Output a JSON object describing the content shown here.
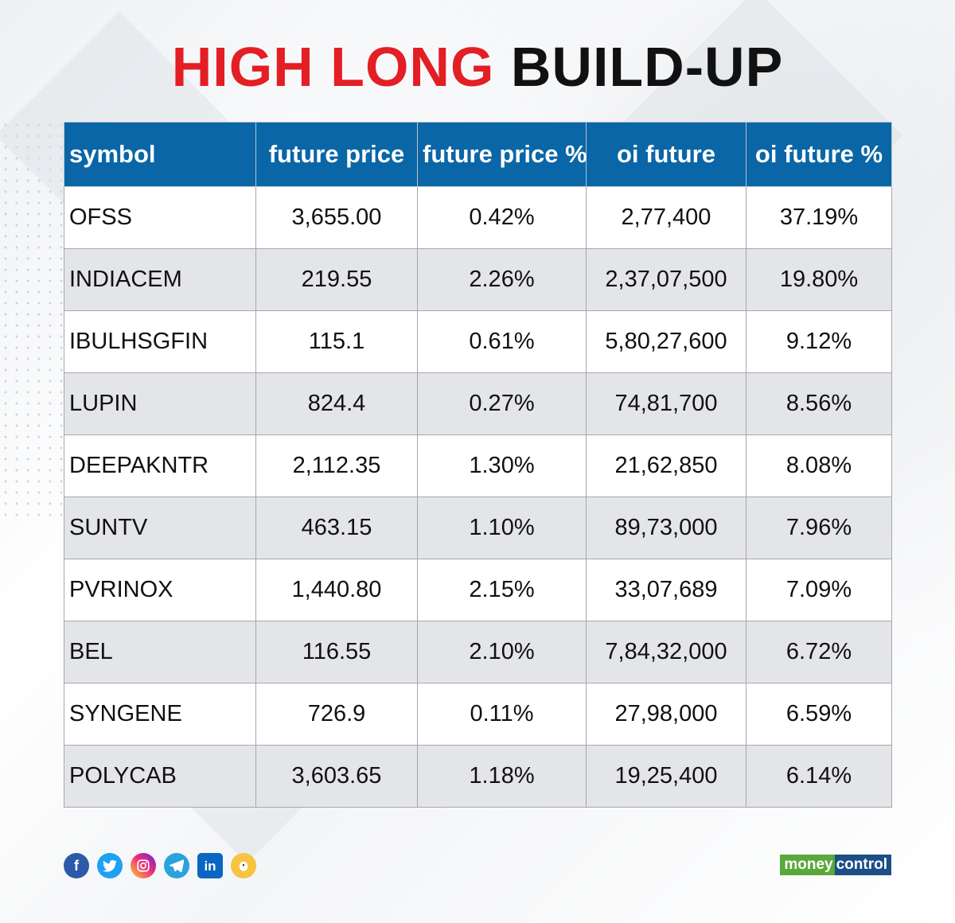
{
  "title": {
    "part1": "HIGH LONG",
    "part2": "BUILD-UP"
  },
  "table": {
    "headers": [
      "symbol",
      "future price",
      "future price %",
      "oi future",
      "oi future %"
    ],
    "rows": [
      [
        "OFSS",
        "3,655.00",
        "0.42%",
        "2,77,400",
        "37.19%"
      ],
      [
        "INDIACEM",
        "219.55",
        "2.26%",
        "2,37,07,500",
        "19.80%"
      ],
      [
        "IBULHSGFIN",
        "115.1",
        "0.61%",
        "5,80,27,600",
        "9.12%"
      ],
      [
        "LUPIN",
        "824.4",
        "0.27%",
        "74,81,700",
        "8.56%"
      ],
      [
        "DEEPAKNTR",
        "2,112.35",
        "1.30%",
        "21,62,850",
        "8.08%"
      ],
      [
        "SUNTV",
        "463.15",
        "1.10%",
        "89,73,000",
        "7.96%"
      ],
      [
        "PVRINOX",
        "1,440.80",
        "2.15%",
        "33,07,689",
        "7.09%"
      ],
      [
        "BEL",
        "116.55",
        "2.10%",
        "7,84,32,000",
        "6.72%"
      ],
      [
        "SYNGENE",
        "726.9",
        "0.11%",
        "27,98,000",
        "6.59%"
      ],
      [
        "POLYCAB",
        "3,603.65",
        "1.18%",
        "19,25,400",
        "6.14%"
      ]
    ]
  },
  "footer": {
    "social_icons": [
      "facebook-icon",
      "twitter-icon",
      "instagram-icon",
      "telegram-icon",
      "linkedin-icon",
      "koo-icon"
    ],
    "brand_part1": "money",
    "brand_part2": "control"
  },
  "colors": {
    "title_red": "#e31e24",
    "header_blue": "#0a66a6",
    "row_alt": "#e4e5e8"
  }
}
